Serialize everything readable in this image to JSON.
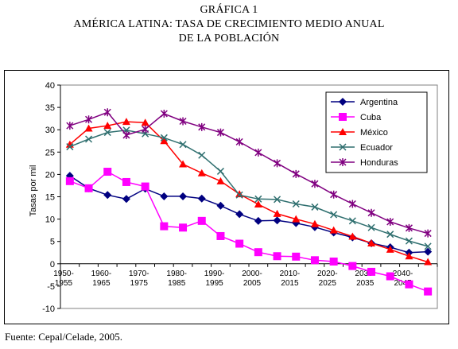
{
  "header": {
    "line1": "GRÁFICA 1",
    "line2": "AMÉRICA LATINA: TASA DE CRECIMIENTO MEDIO ANUAL",
    "line3": "DE LA POBLACIÓN"
  },
  "footer": {
    "source": "Fuente: Cepal/Celade, 2005."
  },
  "chart_data": {
    "type": "line",
    "ylabel": "Tasas por mil",
    "xlabel": "",
    "ylim": [
      -10,
      40
    ],
    "yticks": [
      -10,
      -5,
      0,
      5,
      10,
      15,
      20,
      25,
      30,
      35,
      40
    ],
    "grid": false,
    "legend_position": "top-right",
    "x_tick_labels": [
      {
        "top": "1950-",
        "bottom": "1955"
      },
      {
        "top": "1960-",
        "bottom": "1965"
      },
      {
        "top": "1970-",
        "bottom": "1975"
      },
      {
        "top": "1980-",
        "bottom": "1985"
      },
      {
        "top": "1990-",
        "bottom": "1995"
      },
      {
        "top": "2000-",
        "bottom": "2005"
      },
      {
        "top": "2010-",
        "bottom": "2015"
      },
      {
        "top": "2020-",
        "bottom": "2025"
      },
      {
        "top": "2030-",
        "bottom": "2035"
      },
      {
        "top": "2040-",
        "bottom": "2045"
      }
    ],
    "categories": [
      "1950-1955",
      "1955-1960",
      "1960-1965",
      "1965-1970",
      "1970-1975",
      "1975-1980",
      "1980-1985",
      "1985-1990",
      "1990-1995",
      "1995-2000",
      "2000-2005",
      "2005-2010",
      "2010-2015",
      "2015-2020",
      "2020-2025",
      "2025-2030",
      "2030-2035",
      "2035-2040",
      "2040-2045",
      "2045-2050"
    ],
    "series": [
      {
        "name": "Argentina",
        "color": "#000080",
        "marker": "diamond",
        "values": [
          19.7,
          16.9,
          15.4,
          14.5,
          16.8,
          15.1,
          15.1,
          14.6,
          13.0,
          11.1,
          9.6,
          9.7,
          9.1,
          8.2,
          7.0,
          5.9,
          4.6,
          3.7,
          2.5,
          2.7
        ]
      },
      {
        "name": "Cuba",
        "color": "#ff00ff",
        "marker": "square",
        "values": [
          18.5,
          16.9,
          20.6,
          18.3,
          17.3,
          8.4,
          8.1,
          9.6,
          6.2,
          4.5,
          2.6,
          1.7,
          1.6,
          0.8,
          0.5,
          -0.5,
          -1.8,
          -2.8,
          -4.6,
          -6.2
        ]
      },
      {
        "name": "México",
        "color": "#ff0000",
        "marker": "triangle",
        "values": [
          26.7,
          30.3,
          30.9,
          31.8,
          31.6,
          27.5,
          22.3,
          20.3,
          18.5,
          15.6,
          13.3,
          11.2,
          10.0,
          8.9,
          7.5,
          6.1,
          4.6,
          3.2,
          1.7,
          0.4
        ]
      },
      {
        "name": "Ecuador",
        "color": "#2f6f6f",
        "marker": "x",
        "values": [
          26.2,
          27.9,
          29.4,
          29.9,
          29.1,
          28.2,
          26.7,
          24.3,
          20.7,
          15.4,
          14.5,
          14.4,
          13.4,
          12.7,
          11.0,
          9.6,
          8.1,
          6.6,
          5.1,
          3.9
        ]
      },
      {
        "name": "Honduras",
        "color": "#800080",
        "marker": "star",
        "values": [
          30.9,
          32.3,
          33.9,
          28.8,
          30.1,
          33.6,
          31.9,
          30.6,
          29.4,
          27.3,
          24.9,
          22.5,
          20.1,
          17.9,
          15.5,
          13.4,
          11.4,
          9.4,
          8.0,
          6.8
        ]
      }
    ]
  }
}
